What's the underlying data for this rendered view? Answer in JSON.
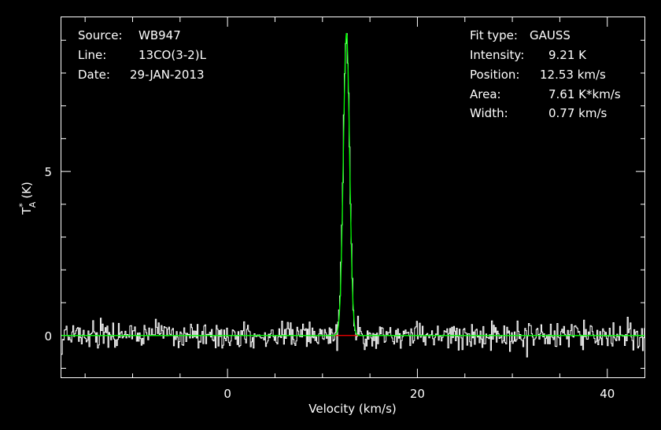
{
  "chart_data": {
    "type": "line",
    "title": "",
    "xlabel": "Velocity (km/s)",
    "ylabel": "T",
    "ylabel_sup": "*",
    "ylabel_sub": "A",
    "ylabel_unit": "(K)",
    "xlim": [
      -17.5,
      44
    ],
    "ylim": [
      -1.3,
      9.7
    ],
    "x_ticks": [
      0,
      20,
      40
    ],
    "x_tick_labels": [
      "0",
      "20",
      "40"
    ],
    "y_ticks": [
      0,
      5
    ],
    "y_tick_labels": [
      "0",
      "5"
    ],
    "grid": false,
    "info_left": [
      {
        "key": "Source:",
        "value": "WB947"
      },
      {
        "key": "Line:",
        "value": "13CO(3-2)L"
      },
      {
        "key": "Date:",
        "value": "29-JAN-2013"
      }
    ],
    "info_right": [
      {
        "key": "Fit type:",
        "value": "GAUSS"
      },
      {
        "key": "Intensity:",
        "value": "9.21 K"
      },
      {
        "key": "Position:",
        "value": "12.53 km/s"
      },
      {
        "key": "Area:",
        "value": "7.61 K*km/s"
      },
      {
        "key": "Width:",
        "value": "0.77 km/s"
      }
    ],
    "fit": {
      "amplitude": 9.21,
      "center": 12.53,
      "fwhm": 0.77
    },
    "noise_rms": 0.2,
    "baseline_range": [
      11.2,
      13.8
    ],
    "colors": {
      "spectrum": "#ffffff",
      "fit": "#00ff00",
      "baseline": "#ff0000",
      "axes": "#ffffff",
      "background": "#000000"
    }
  }
}
